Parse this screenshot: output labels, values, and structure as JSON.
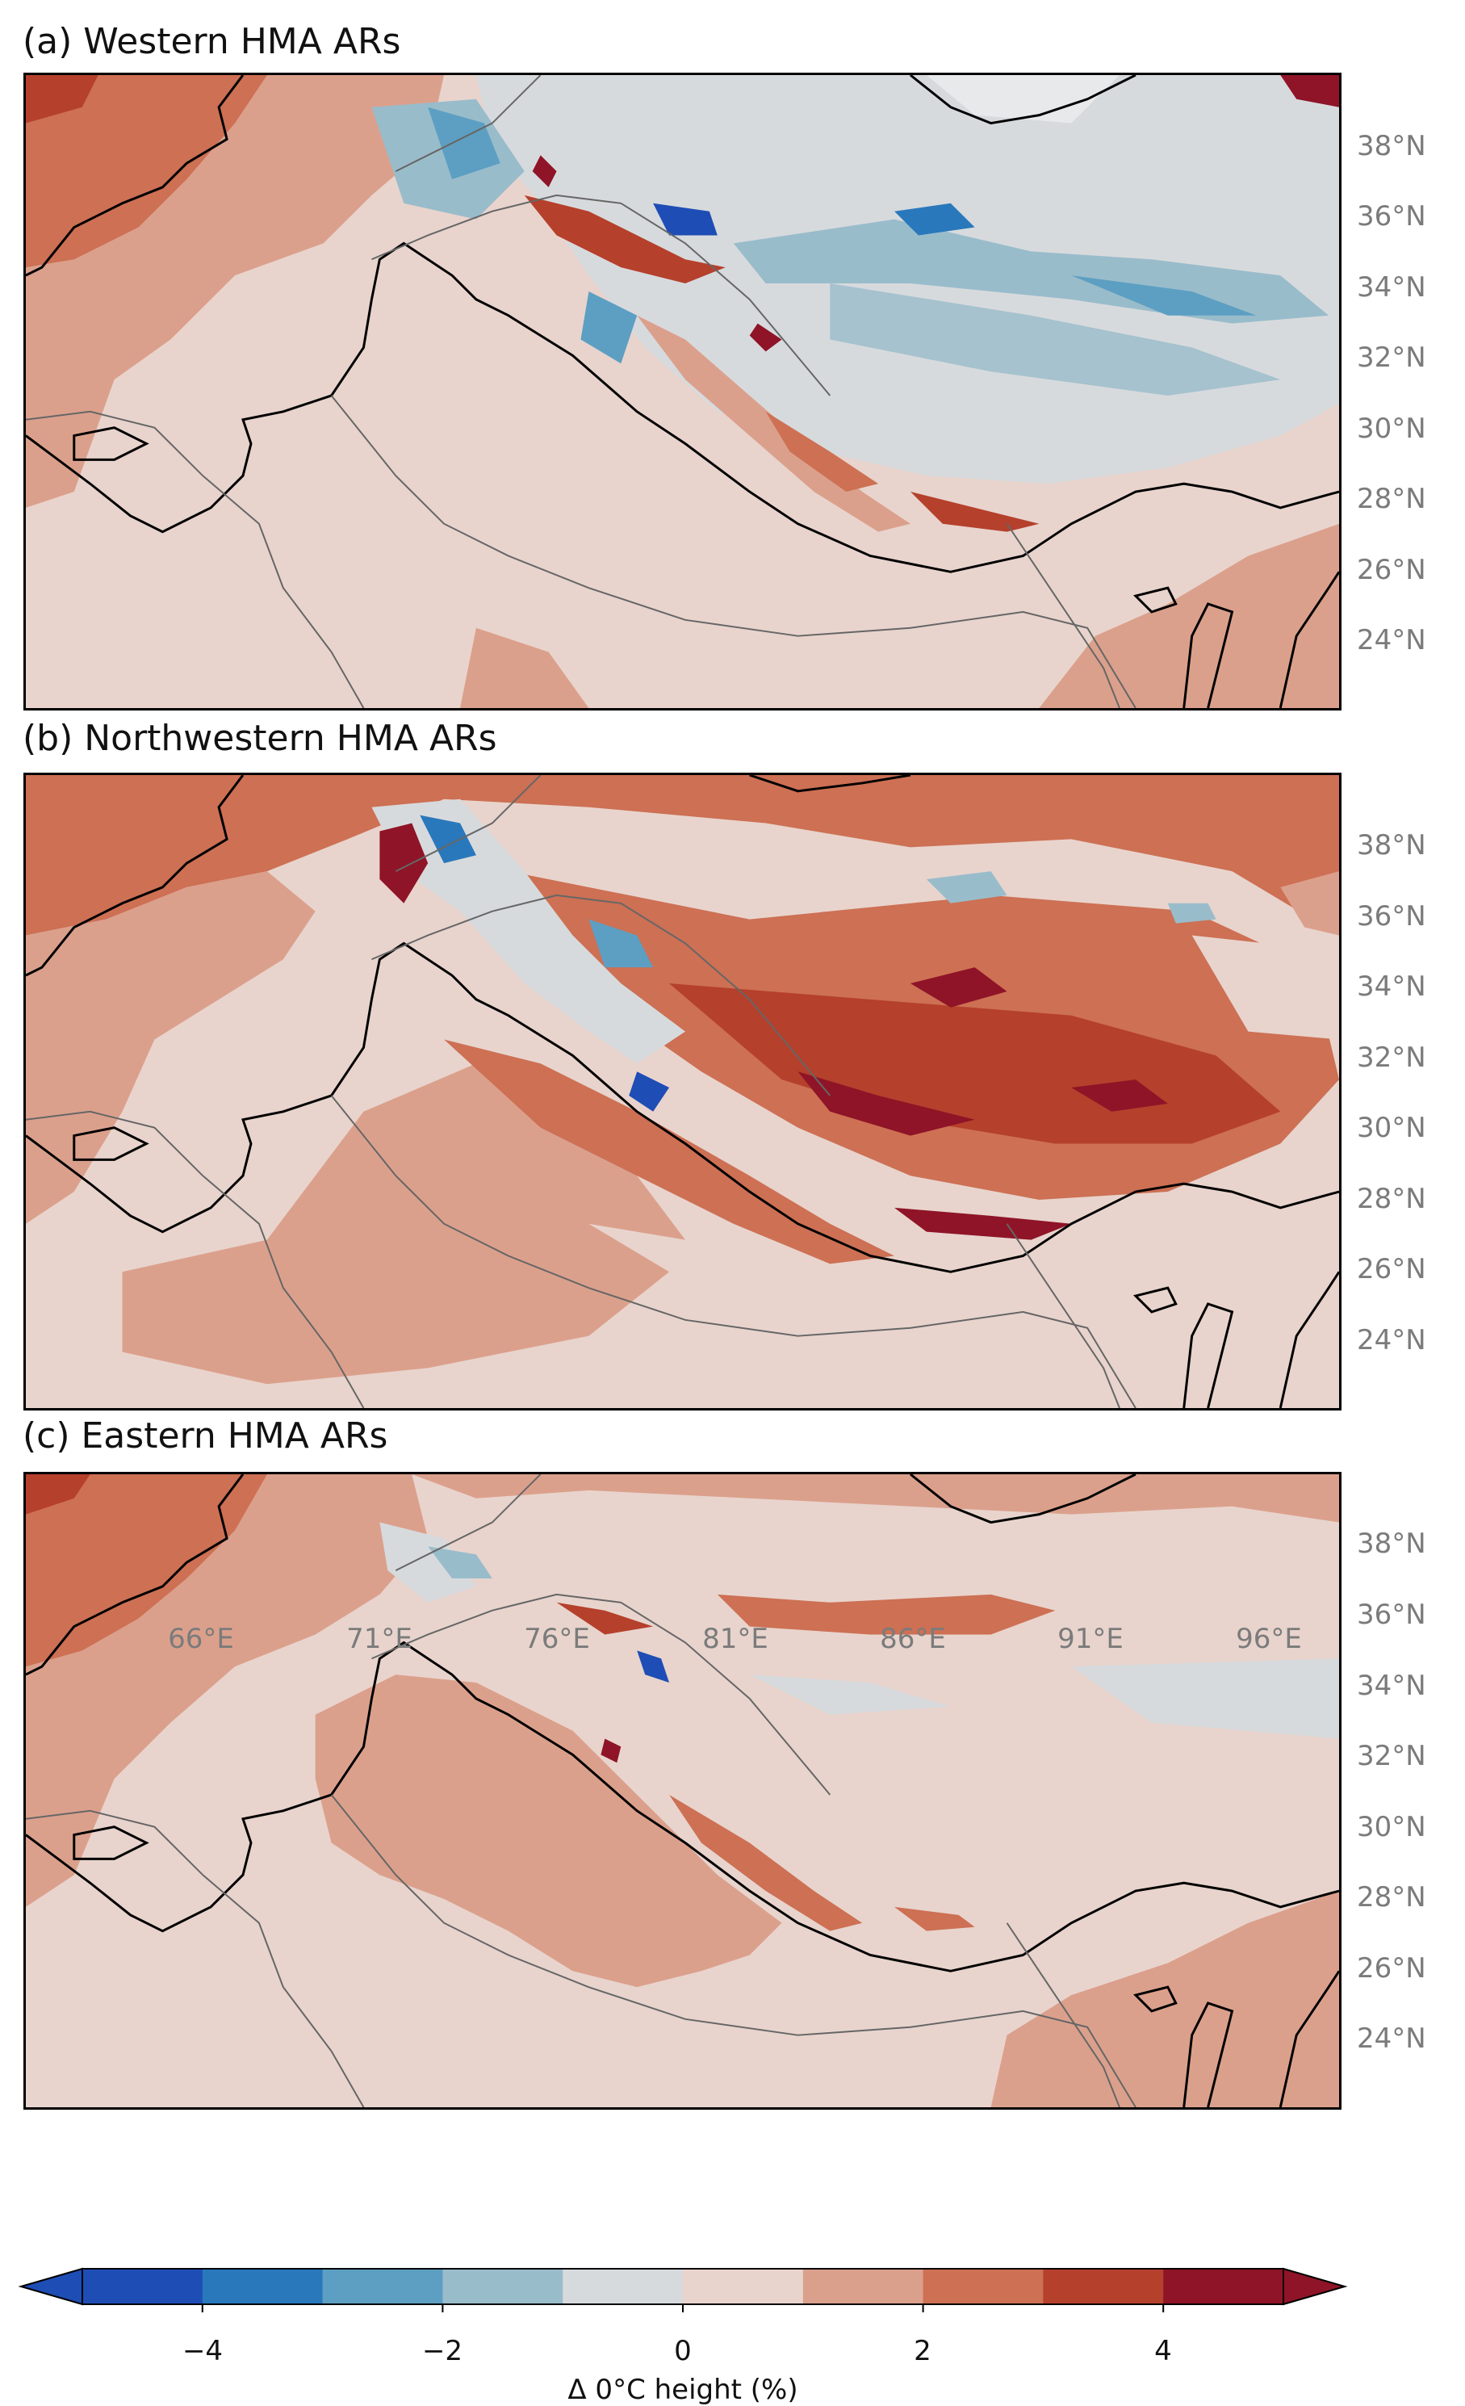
{
  "figure": {
    "panels": [
      {
        "id": "a",
        "title": "(a) Western HMA ARs"
      },
      {
        "id": "b",
        "title": "(b) Northwestern HMA ARs"
      },
      {
        "id": "c",
        "title": "(c) Eastern HMA ARs"
      }
    ],
    "latitude_ticks": [
      "38°N",
      "36°N",
      "34°N",
      "32°N",
      "30°N",
      "28°N",
      "26°N",
      "24°N"
    ],
    "longitude_ticks": [
      "66°E",
      "71°E",
      "76°E",
      "81°E",
      "86°E",
      "91°E",
      "96°E"
    ]
  },
  "colorbar": {
    "label": "Δ 0°C height (%)",
    "tick_labels": [
      "−4",
      "−2",
      "0",
      "2",
      "4"
    ],
    "levels": [
      -5,
      -4,
      -3,
      -2,
      -1,
      0,
      1,
      2,
      3,
      4,
      5
    ],
    "colors": [
      "#1e4db5",
      "#2a78bc",
      "#5d9fc2",
      "#99bccb",
      "#d7dadd",
      "#e8d4cd",
      "#dba08c",
      "#cd7054",
      "#b5402c",
      "#8f1427"
    ],
    "under_color": "#1e4db5",
    "over_color": "#8f1427",
    "extend": "both"
  },
  "chart_data": {
    "type": "heatmap",
    "description_fields": {
      "variable": "Δ 0°C height (%)",
      "lon_range": [
        61.5,
        98
      ],
      "lat_range": [
        22,
        40
      ]
    }
  }
}
